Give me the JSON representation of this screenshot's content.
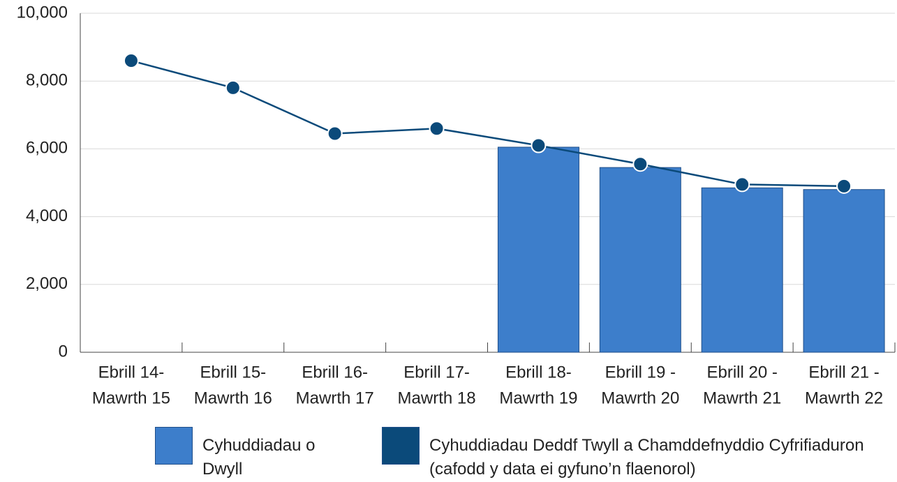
{
  "chart_data": {
    "type": "bar",
    "categories": [
      [
        "Ebrill 14-",
        "Mawrth 15"
      ],
      [
        "Ebrill 15-",
        "Mawrth 16"
      ],
      [
        "Ebrill 16-",
        "Mawrth 17"
      ],
      [
        "Ebrill 17-",
        "Mawrth 18"
      ],
      [
        "Ebrill 18-",
        "Mawrth 19"
      ],
      [
        "Ebrill 19 -",
        "Mawrth 20"
      ],
      [
        "Ebrill 20 -",
        "Mawrth 21"
      ],
      [
        "Ebrill 21 -",
        "Mawrth 22"
      ]
    ],
    "series": [
      {
        "name": "Cyhuddiadau o Dwyll",
        "type": "bar",
        "color": "#3d7ecb",
        "values": [
          null,
          null,
          null,
          null,
          6050,
          5450,
          4850,
          4800
        ]
      },
      {
        "name": "Cyhuddiadau Deddf Twyll a Chamddefnyddio Cyfrifiaduron (cafodd y data ei gyfuno’n flaenorol)",
        "type": "line",
        "color": "#0b4a7a",
        "values": [
          8600,
          7800,
          6450,
          6600,
          6100,
          5550,
          4950,
          4900
        ]
      }
    ],
    "ylim": [
      0,
      10000
    ],
    "yticks": [
      0,
      {
        "value": 2000,
        "label": "2,000"
      },
      {
        "value": 4000,
        "label": "4,000"
      },
      {
        "value": 6000,
        "label": "6,000"
      },
      {
        "value": 8000,
        "label": "8,000"
      },
      {
        "value": 10000,
        "label": "10,000"
      }
    ],
    "grid": true
  }
}
